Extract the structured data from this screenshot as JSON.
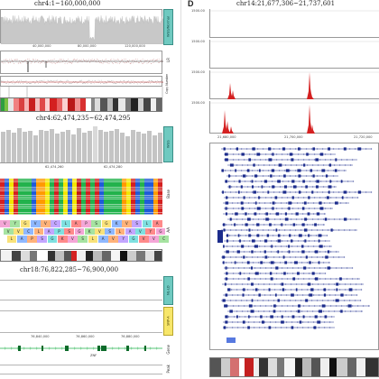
{
  "panel_a": {
    "title": "chr4:1~160,000,000",
    "coverage_tag": "WGS/Normal",
    "x_ticks": [
      "40,000,000",
      "80,000,000",
      "120,000,000"
    ],
    "cnv_tag": "Copy Number",
    "lr_label": "LR",
    "pct_label": "%"
  },
  "panel_b": {
    "title": "chr4:62,474,235~62,474,295",
    "coverage_tag": "WGS",
    "x_ticks": [
      "62,474,260",
      "62,474,280"
    ],
    "base_label": "Base",
    "aa_label": "AA",
    "aa_letters": [
      "V",
      "Y",
      "G",
      "V",
      "V",
      "C",
      "L",
      "A",
      "P",
      "S",
      "G",
      "K",
      "V",
      "S",
      "L",
      "A"
    ]
  },
  "panel_c": {
    "title": "chr18:76,822,285~76,900,000",
    "tag_top": "NL-LD",
    "tag_yellow": "SNP-A",
    "x_ticks": [
      "76,840,000",
      "76,860,000",
      "76,880,000"
    ],
    "gene_label": "Gene",
    "peak_label": "Peak",
    "gene_name": "ZNF"
  },
  "panel_d": {
    "letter": "D",
    "title": "chr14:21,677,306~21,737,601",
    "y_ticks": [
      "1500.00",
      "1500.00",
      "1500.00",
      "1500.00"
    ],
    "x_ticks": [
      "21,680,000",
      "21,700,000",
      "21,720,000"
    ]
  },
  "colors": {
    "coverage": "#c8c8c8",
    "teal": "#6fc9c0",
    "red": "#d42020",
    "green": "#22b24c",
    "gene_blue": "#1c2c8c"
  }
}
